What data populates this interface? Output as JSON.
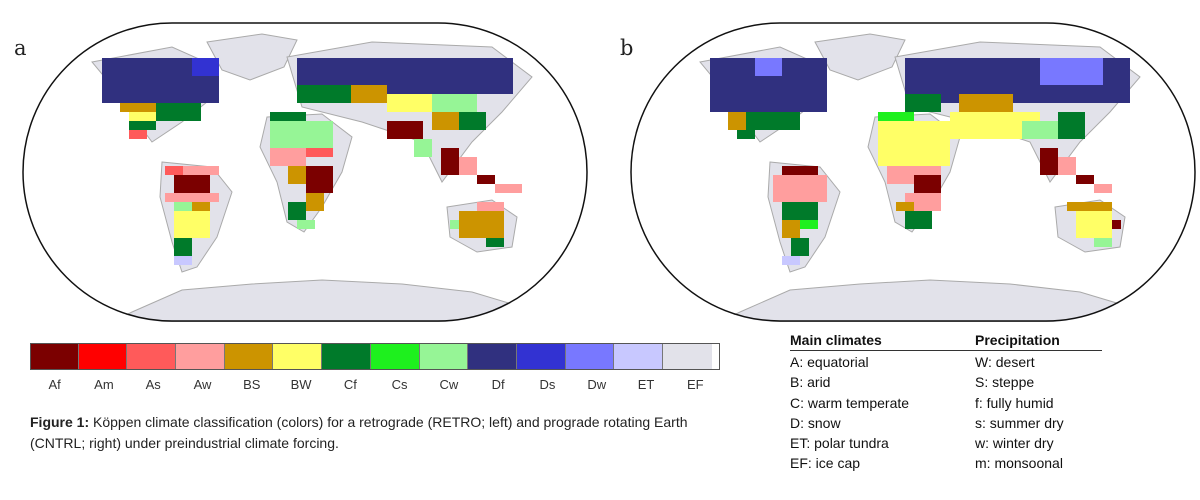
{
  "panels": [
    {
      "label": "a",
      "name": "RETRO"
    },
    {
      "label": "b",
      "name": "CNTRL"
    }
  ],
  "colorbar": [
    {
      "code": "Af",
      "color": "#7b0000"
    },
    {
      "code": "Am",
      "color": "#ff0000"
    },
    {
      "code": "As",
      "color": "#ff5a5a"
    },
    {
      "code": "Aw",
      "color": "#ff9e9e"
    },
    {
      "code": "BS",
      "color": "#cc9400"
    },
    {
      "code": "BW",
      "color": "#ffff66"
    },
    {
      "code": "Cf",
      "color": "#007a2a"
    },
    {
      "code": "Cs",
      "color": "#1ef01e"
    },
    {
      "code": "Cw",
      "color": "#96f596"
    },
    {
      "code": "Df",
      "color": "#30307f"
    },
    {
      "code": "Ds",
      "color": "#3232d2"
    },
    {
      "code": "Dw",
      "color": "#7878ff"
    },
    {
      "code": "ET",
      "color": "#c8c8ff"
    },
    {
      "code": "EF",
      "color": "#e2e2ea"
    }
  ],
  "caption": {
    "bold": "Figure 1:",
    "text": " Köppen climate classification (colors) for a retrograde (RETRO; left) and prograde rotating Earth (CNTRL; right) under preindustrial climate forcing."
  },
  "legend": {
    "main_title": "Main climates",
    "main_items": [
      "A: equatorial",
      "B: arid",
      "C: warm temperate",
      "D: snow",
      "ET: polar tundra",
      "EF: ice cap"
    ],
    "precip_title": "Precipitation",
    "precip_items": [
      "W: desert",
      "S: steppe",
      "f: fully humid",
      "s: summer dry",
      "w: winter dry",
      "m: monsoonal"
    ]
  },
  "map_colors": {
    "outline": "#111111",
    "coast": "#aaaaaa",
    "land_gray": "#dcdce2"
  }
}
